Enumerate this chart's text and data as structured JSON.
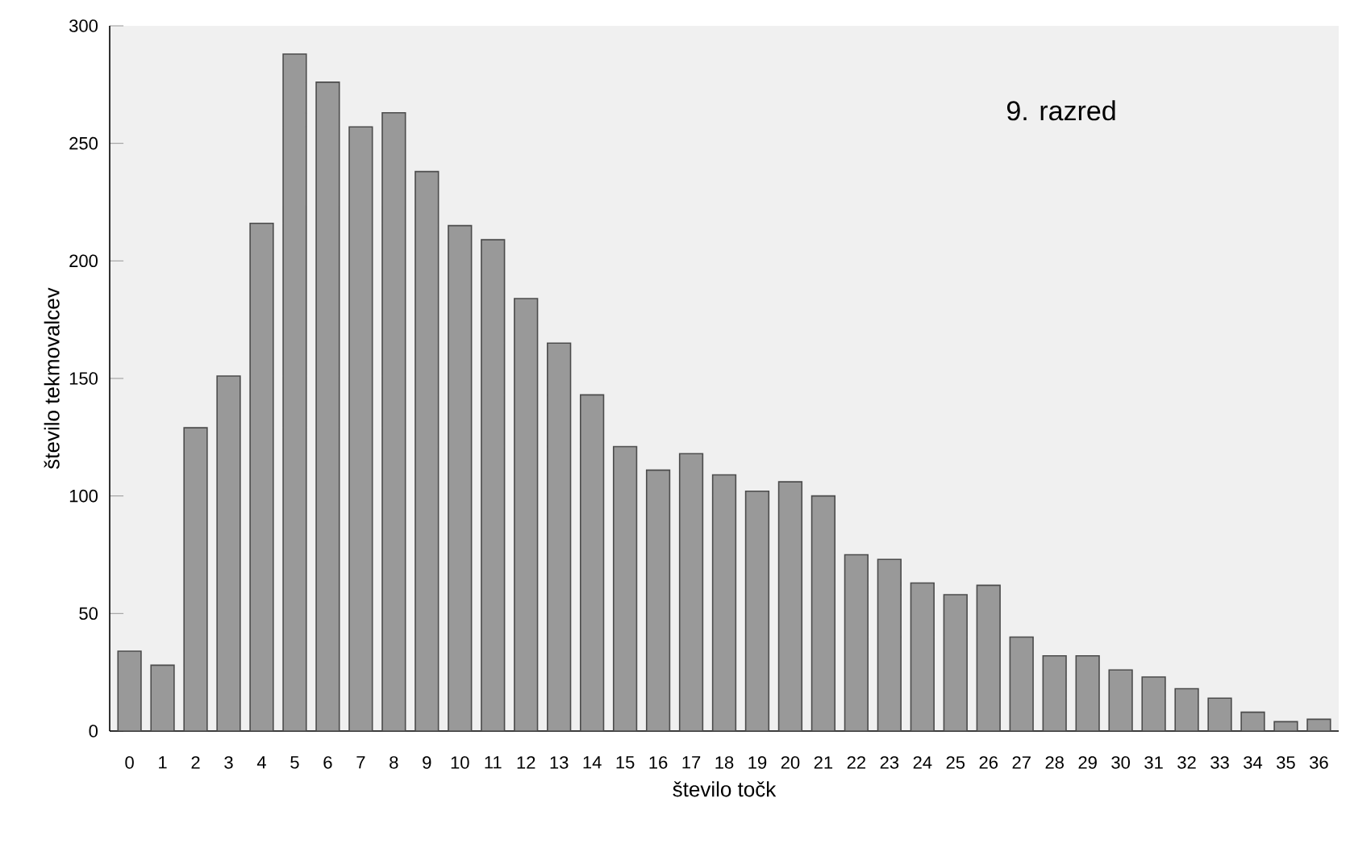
{
  "chart_data": {
    "type": "bar",
    "xlabel": "število točk",
    "ylabel": "število tekmovalcev",
    "annotations": [
      "9. razred"
    ],
    "categories": [
      "0",
      "1",
      "2",
      "3",
      "4",
      "5",
      "6",
      "7",
      "8",
      "9",
      "10",
      "11",
      "12",
      "13",
      "14",
      "15",
      "16",
      "17",
      "18",
      "19",
      "20",
      "21",
      "22",
      "23",
      "24",
      "25",
      "26",
      "27",
      "28",
      "29",
      "30",
      "31",
      "32",
      "33",
      "34",
      "35",
      "36"
    ],
    "values": [
      34,
      28,
      129,
      151,
      216,
      288,
      276,
      257,
      263,
      238,
      215,
      209,
      184,
      165,
      143,
      121,
      111,
      118,
      109,
      102,
      106,
      100,
      75,
      73,
      63,
      58,
      62,
      40,
      32,
      32,
      26,
      23,
      18,
      14,
      8,
      4,
      5
    ],
    "color": "#999999",
    "ylim": [
      0,
      300
    ],
    "yticks": [
      0,
      50,
      100,
      150,
      200,
      250,
      300
    ],
    "grid": false
  }
}
